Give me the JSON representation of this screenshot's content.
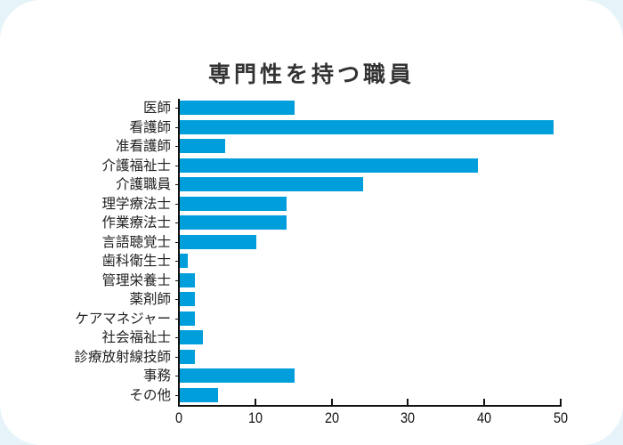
{
  "chart_data": {
    "type": "bar",
    "orientation": "horizontal",
    "title": "専門性を持つ職員",
    "xlabel": "",
    "ylabel": "",
    "xlim": [
      0,
      50
    ],
    "xticks": [
      0,
      10,
      20,
      30,
      40,
      50
    ],
    "grid": false,
    "legend": null,
    "bar_color": "#009fdc",
    "categories": [
      "医師",
      "看護師",
      "准看護師",
      "介護福祉士",
      "介護職員",
      "理学療法士",
      "作業療法士",
      "言語聴覚士",
      "歯科衛生士",
      "管理栄養士",
      "薬剤師",
      "ケアマネジャー",
      "社会福祉士",
      "診療放射線技師",
      "事務",
      "その他"
    ],
    "values": [
      15,
      49,
      6,
      39,
      24,
      14,
      14,
      10,
      1,
      2,
      2,
      2,
      3,
      2,
      15,
      5
    ]
  },
  "colors": {
    "background": "#e6f4fa",
    "card": "#ffffff",
    "bar": "#009fdc",
    "title": "#333333",
    "axis": "#111111"
  }
}
